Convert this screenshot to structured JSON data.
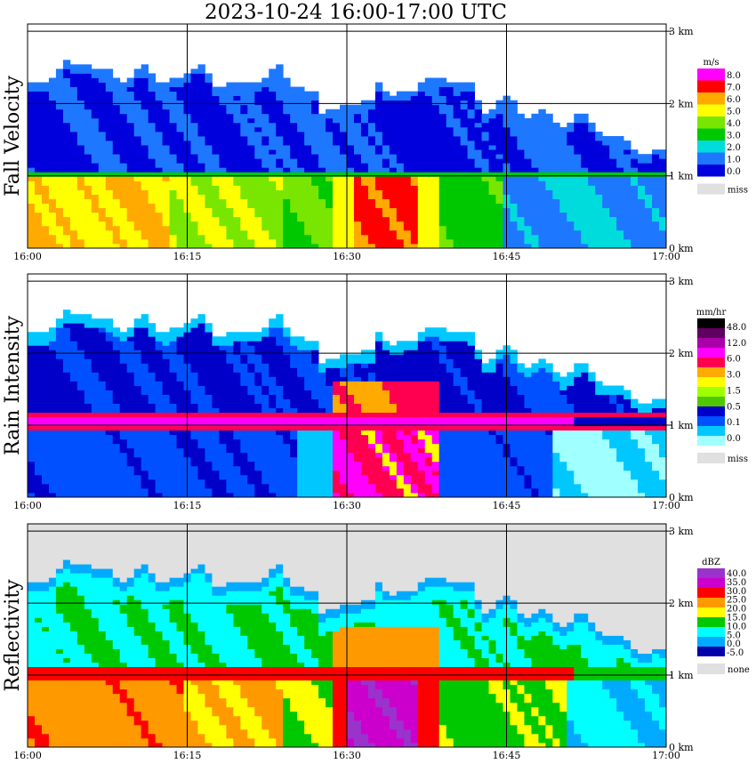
{
  "title": "2023-10-24   16:00-17:00 UTC",
  "colors": {
    "fall_velocity": [
      "#0000dd",
      "#1e78ff",
      "#00dcdc",
      "#00c800",
      "#78e600",
      "#ffff00",
      "#ffaa00",
      "#ff0000",
      "#ff00ff"
    ],
    "rain_intensity": [
      "#ffffff",
      "#a0ffff",
      "#00c8ff",
      "#0050ff",
      "#0000c8",
      "#50c800",
      "#a0ff00",
      "#ffff00",
      "#ffaa00",
      "#ff0050",
      "#ff00ff",
      "#aa00aa",
      "#600060",
      "#000000"
    ],
    "reflectivity": [
      "#0000aa",
      "#00aaff",
      "#00ffff",
      "#00c800",
      "#ffff00",
      "#ff9900",
      "#ff0000",
      "#cc00cc",
      "#9933cc"
    ],
    "missing": "#e0e0e0"
  },
  "chart_data": [
    {
      "type": "heatmap",
      "ylabel": "Fall Velocity",
      "x_tick_labels": [
        "16:00",
        "16:15",
        "16:30",
        "16:45",
        "17:00"
      ],
      "y_tick_labels": [
        "0 km",
        "1 km",
        "2 km",
        "3 km"
      ],
      "xlim": [
        "16:00",
        "17:00"
      ],
      "ylim_km": [
        0,
        3.1
      ],
      "colorbar": {
        "unit": "m/s",
        "labels": [
          "8.0",
          "7.0",
          "6.0",
          "5.0",
          "4.0",
          "3.0",
          "2.0",
          "1.0",
          "0.0"
        ],
        "missing_label": "miss"
      },
      "bright_band_height_km": 1.0,
      "echo_top_km": {
        "16:00": 2.45,
        "16:20": 2.5,
        "16:30": 2.1,
        "16:45": 1.7,
        "17:00": 1.25
      }
    },
    {
      "type": "heatmap",
      "ylabel": "Rain Intensity",
      "x_tick_labels": [
        "16:00",
        "16:15",
        "16:30",
        "16:45",
        "17:00"
      ],
      "y_tick_labels": [
        "0 km",
        "1 km",
        "2 km",
        "3 km"
      ],
      "xlim": [
        "16:00",
        "17:00"
      ],
      "ylim_km": [
        0,
        3.1
      ],
      "colorbar": {
        "unit": "mm/hr",
        "labels": [
          "48.0",
          "12.0",
          "6.0",
          "3.0",
          "1.5",
          "0.5",
          "0.1",
          "0.0"
        ],
        "missing_label": "miss"
      },
      "bright_band_height_km": 1.05
    },
    {
      "type": "heatmap",
      "ylabel": "Reflectivity",
      "x_tick_labels": [
        "16:00",
        "16:15",
        "16:30",
        "16:45",
        "17:00"
      ],
      "y_tick_labels": [
        "0 km",
        "1 km",
        "2 km",
        "3 km"
      ],
      "xlim": [
        "16:00",
        "17:00"
      ],
      "ylim_km": [
        0,
        3.1
      ],
      "colorbar": {
        "unit": "dBZ",
        "labels": [
          "40.0",
          "35.0",
          "30.0",
          "25.0",
          "20.0",
          "15.0",
          "10.0",
          "5.0",
          "0.0",
          "-5.0"
        ],
        "missing_label": "none"
      },
      "bright_band_height_km": 1.05
    }
  ]
}
